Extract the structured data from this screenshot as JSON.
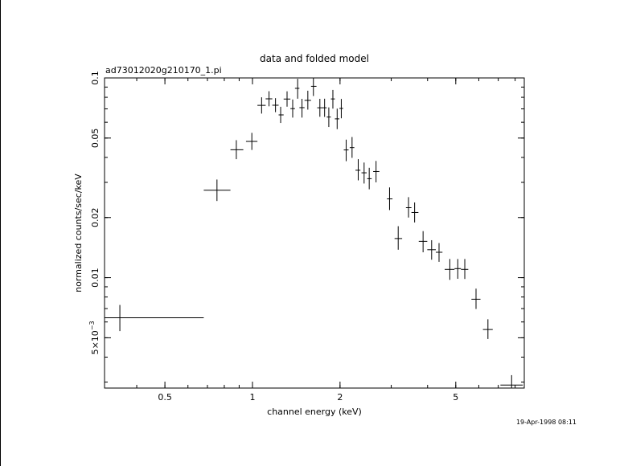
{
  "chart_data": {
    "type": "scatter",
    "title": "data and folded model",
    "subtitle": "ad73012020g210170_1.pi",
    "xlabel": "channel energy (keV)",
    "ylabel": "normalized counts/sec/keV",
    "x_scale": "log",
    "y_scale": "log",
    "xlim": [
      0.31,
      8.6
    ],
    "ylim": [
      0.0028,
      0.1
    ],
    "grid": false,
    "x_ticks": [
      {
        "value": 0.5,
        "label": "0.5"
      },
      {
        "value": 1,
        "label": "1"
      },
      {
        "value": 2,
        "label": "2"
      },
      {
        "value": 5,
        "label": "5"
      }
    ],
    "y_ticks": [
      {
        "value": 0.005,
        "label": "5×10",
        "exponent": "−3"
      },
      {
        "value": 0.01,
        "label": "0.01"
      },
      {
        "value": 0.02,
        "label": "0.02"
      },
      {
        "value": 0.05,
        "label": "0.05"
      },
      {
        "value": 0.1,
        "label": "0.1"
      }
    ],
    "series": [
      {
        "points": [
          {
            "x": 0.35,
            "xlo": 0.31,
            "xhi": 0.68,
            "y": 0.0063,
            "ylo": 0.0054,
            "yhi": 0.0073
          },
          {
            "x": 0.755,
            "xlo": 0.68,
            "xhi": 0.84,
            "y": 0.0274,
            "ylo": 0.0242,
            "yhi": 0.031
          },
          {
            "x": 0.88,
            "xlo": 0.84,
            "xhi": 0.93,
            "y": 0.0437,
            "ylo": 0.0392,
            "yhi": 0.0488
          },
          {
            "x": 0.995,
            "xlo": 0.95,
            "xhi": 1.04,
            "y": 0.0481,
            "ylo": 0.0436,
            "yhi": 0.0531
          },
          {
            "x": 1.075,
            "xlo": 1.04,
            "xhi": 1.11,
            "y": 0.0729,
            "ylo": 0.0663,
            "yhi": 0.08
          },
          {
            "x": 1.14,
            "xlo": 1.11,
            "xhi": 1.17,
            "y": 0.0786,
            "ylo": 0.0721,
            "yhi": 0.0858
          },
          {
            "x": 1.2,
            "xlo": 1.17,
            "xhi": 1.23,
            "y": 0.073,
            "ylo": 0.0674,
            "yhi": 0.0792
          },
          {
            "x": 1.25,
            "xlo": 1.23,
            "xhi": 1.28,
            "y": 0.0653,
            "ylo": 0.0595,
            "yhi": 0.0717
          },
          {
            "x": 1.315,
            "xlo": 1.28,
            "xhi": 1.35,
            "y": 0.0784,
            "ylo": 0.0718,
            "yhi": 0.0857
          },
          {
            "x": 1.375,
            "xlo": 1.35,
            "xhi": 1.4,
            "y": 0.0702,
            "ylo": 0.0633,
            "yhi": 0.078
          },
          {
            "x": 1.43,
            "xlo": 1.4,
            "xhi": 1.45,
            "y": 0.0887,
            "ylo": 0.0787,
            "yhi": 0.099
          },
          {
            "x": 1.48,
            "xlo": 1.45,
            "xhi": 1.51,
            "y": 0.071,
            "ylo": 0.0633,
            "yhi": 0.0786
          },
          {
            "x": 1.55,
            "xlo": 1.51,
            "xhi": 1.59,
            "y": 0.0772,
            "ylo": 0.0694,
            "yhi": 0.0863
          },
          {
            "x": 1.62,
            "xlo": 1.59,
            "xhi": 1.66,
            "y": 0.0908,
            "ylo": 0.0812,
            "yhi": 0.1
          },
          {
            "x": 1.705,
            "xlo": 1.67,
            "xhi": 1.74,
            "y": 0.0709,
            "ylo": 0.0639,
            "yhi": 0.0786
          },
          {
            "x": 1.77,
            "xlo": 1.74,
            "xhi": 1.8,
            "y": 0.0709,
            "ylo": 0.0638,
            "yhi": 0.0787
          },
          {
            "x": 1.83,
            "xlo": 1.8,
            "xhi": 1.86,
            "y": 0.0637,
            "ylo": 0.0568,
            "yhi": 0.0712
          },
          {
            "x": 1.89,
            "xlo": 1.86,
            "xhi": 1.92,
            "y": 0.0785,
            "ylo": 0.0702,
            "yhi": 0.0871
          },
          {
            "x": 1.955,
            "xlo": 1.92,
            "xhi": 1.99,
            "y": 0.0624,
            "ylo": 0.0554,
            "yhi": 0.0702
          },
          {
            "x": 2.02,
            "xlo": 1.99,
            "xhi": 2.05,
            "y": 0.0704,
            "ylo": 0.0628,
            "yhi": 0.0785
          },
          {
            "x": 2.1,
            "xlo": 2.06,
            "xhi": 2.14,
            "y": 0.0436,
            "ylo": 0.0383,
            "yhi": 0.0491
          },
          {
            "x": 2.2,
            "xlo": 2.16,
            "xhi": 2.24,
            "y": 0.0448,
            "ylo": 0.0398,
            "yhi": 0.0506
          },
          {
            "x": 2.31,
            "xlo": 2.26,
            "xhi": 2.35,
            "y": 0.0345,
            "ylo": 0.0307,
            "yhi": 0.0392
          },
          {
            "x": 2.42,
            "xlo": 2.37,
            "xhi": 2.47,
            "y": 0.0335,
            "ylo": 0.0296,
            "yhi": 0.0377
          },
          {
            "x": 2.52,
            "xlo": 2.48,
            "xhi": 2.57,
            "y": 0.0313,
            "ylo": 0.0277,
            "yhi": 0.0355
          },
          {
            "x": 2.66,
            "xlo": 2.6,
            "xhi": 2.73,
            "y": 0.034,
            "ylo": 0.03,
            "yhi": 0.0384
          },
          {
            "x": 2.96,
            "xlo": 2.9,
            "xhi": 3.03,
            "y": 0.0248,
            "ylo": 0.0218,
            "yhi": 0.0283
          },
          {
            "x": 3.17,
            "xlo": 3.08,
            "xhi": 3.27,
            "y": 0.0157,
            "ylo": 0.0138,
            "yhi": 0.0181
          },
          {
            "x": 3.44,
            "xlo": 3.37,
            "xhi": 3.52,
            "y": 0.0224,
            "ylo": 0.02,
            "yhi": 0.0253
          },
          {
            "x": 3.61,
            "xlo": 3.52,
            "xhi": 3.72,
            "y": 0.0212,
            "ylo": 0.0189,
            "yhi": 0.0238
          },
          {
            "x": 3.86,
            "xlo": 3.73,
            "xhi": 3.99,
            "y": 0.0152,
            "ylo": 0.0134,
            "yhi": 0.0171
          },
          {
            "x": 4.13,
            "xlo": 3.99,
            "xhi": 4.27,
            "y": 0.0138,
            "ylo": 0.0123,
            "yhi": 0.0154
          },
          {
            "x": 4.38,
            "xlo": 4.27,
            "xhi": 4.5,
            "y": 0.0134,
            "ylo": 0.012,
            "yhi": 0.0149
          },
          {
            "x": 4.77,
            "xlo": 4.58,
            "xhi": 4.95,
            "y": 0.011,
            "ylo": 0.00975,
            "yhi": 0.0124
          },
          {
            "x": 5.08,
            "xlo": 4.95,
            "xhi": 5.21,
            "y": 0.0111,
            "ylo": 0.00987,
            "yhi": 0.0124
          },
          {
            "x": 5.37,
            "xlo": 5.21,
            "xhi": 5.52,
            "y": 0.011,
            "ylo": 0.00985,
            "yhi": 0.0124
          },
          {
            "x": 5.87,
            "xlo": 5.66,
            "xhi": 6.08,
            "y": 0.0078,
            "ylo": 0.00697,
            "yhi": 0.00881
          },
          {
            "x": 6.45,
            "xlo": 6.2,
            "xhi": 6.7,
            "y": 0.0055,
            "ylo": 0.00493,
            "yhi": 0.00619
          },
          {
            "x": 7.78,
            "xlo": 7.12,
            "xhi": 8.5,
            "y": 0.0029,
            "ylo": 0.0028,
            "yhi": 0.00325
          }
        ]
      }
    ]
  },
  "footer": {
    "timestamp": "19-Apr-1998 08:11"
  }
}
